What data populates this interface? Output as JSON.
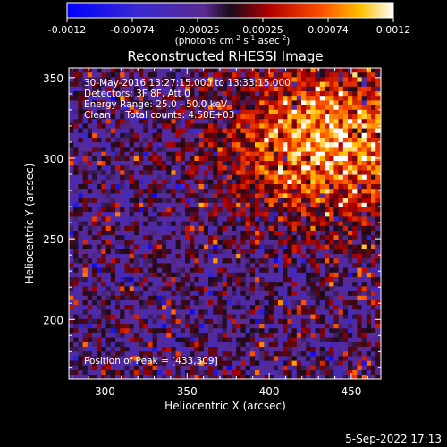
{
  "colors": {
    "background": "#000000",
    "text": "#ffffff"
  },
  "chart_data": {
    "type": "heatmap",
    "title": "Reconstructed RHESSI Image",
    "xlabel": "Heliocentric X (arcsec)",
    "ylabel": "Heliocentric Y (arcsec)",
    "xlim": [
      278,
      468
    ],
    "ylim": [
      163,
      356
    ],
    "xticks": [
      300,
      350,
      400,
      450
    ],
    "yticks": [
      200,
      250,
      300,
      350
    ],
    "grid": false,
    "colorbar": {
      "range": [
        -0.0012,
        0.0012
      ],
      "ticks": [
        "-0.0012",
        "-0.00074",
        "-0.00025",
        "0.00025",
        "0.00074",
        "0.0012"
      ],
      "label_main": "(photons cm",
      "label_sup1": "-2",
      "label_mid1": " s",
      "label_sup2": "-1",
      "label_mid2": " asec",
      "label_sup3": "-2",
      "label_end": ")"
    },
    "annotations": [
      "30-May-2016 13:27:15.000 to 13:33:15.000",
      "Detectors: 3F 8F, Att 0",
      "Energy Range: 25.0 - 50.0 keV",
      "Clean     Total counts: 4.58E+03"
    ],
    "peak_label": "Position of Peak = [433,309]",
    "peak_position": [
      433,
      309
    ]
  },
  "footer": {
    "timestamp": "5-Sep-2022 17:13"
  }
}
